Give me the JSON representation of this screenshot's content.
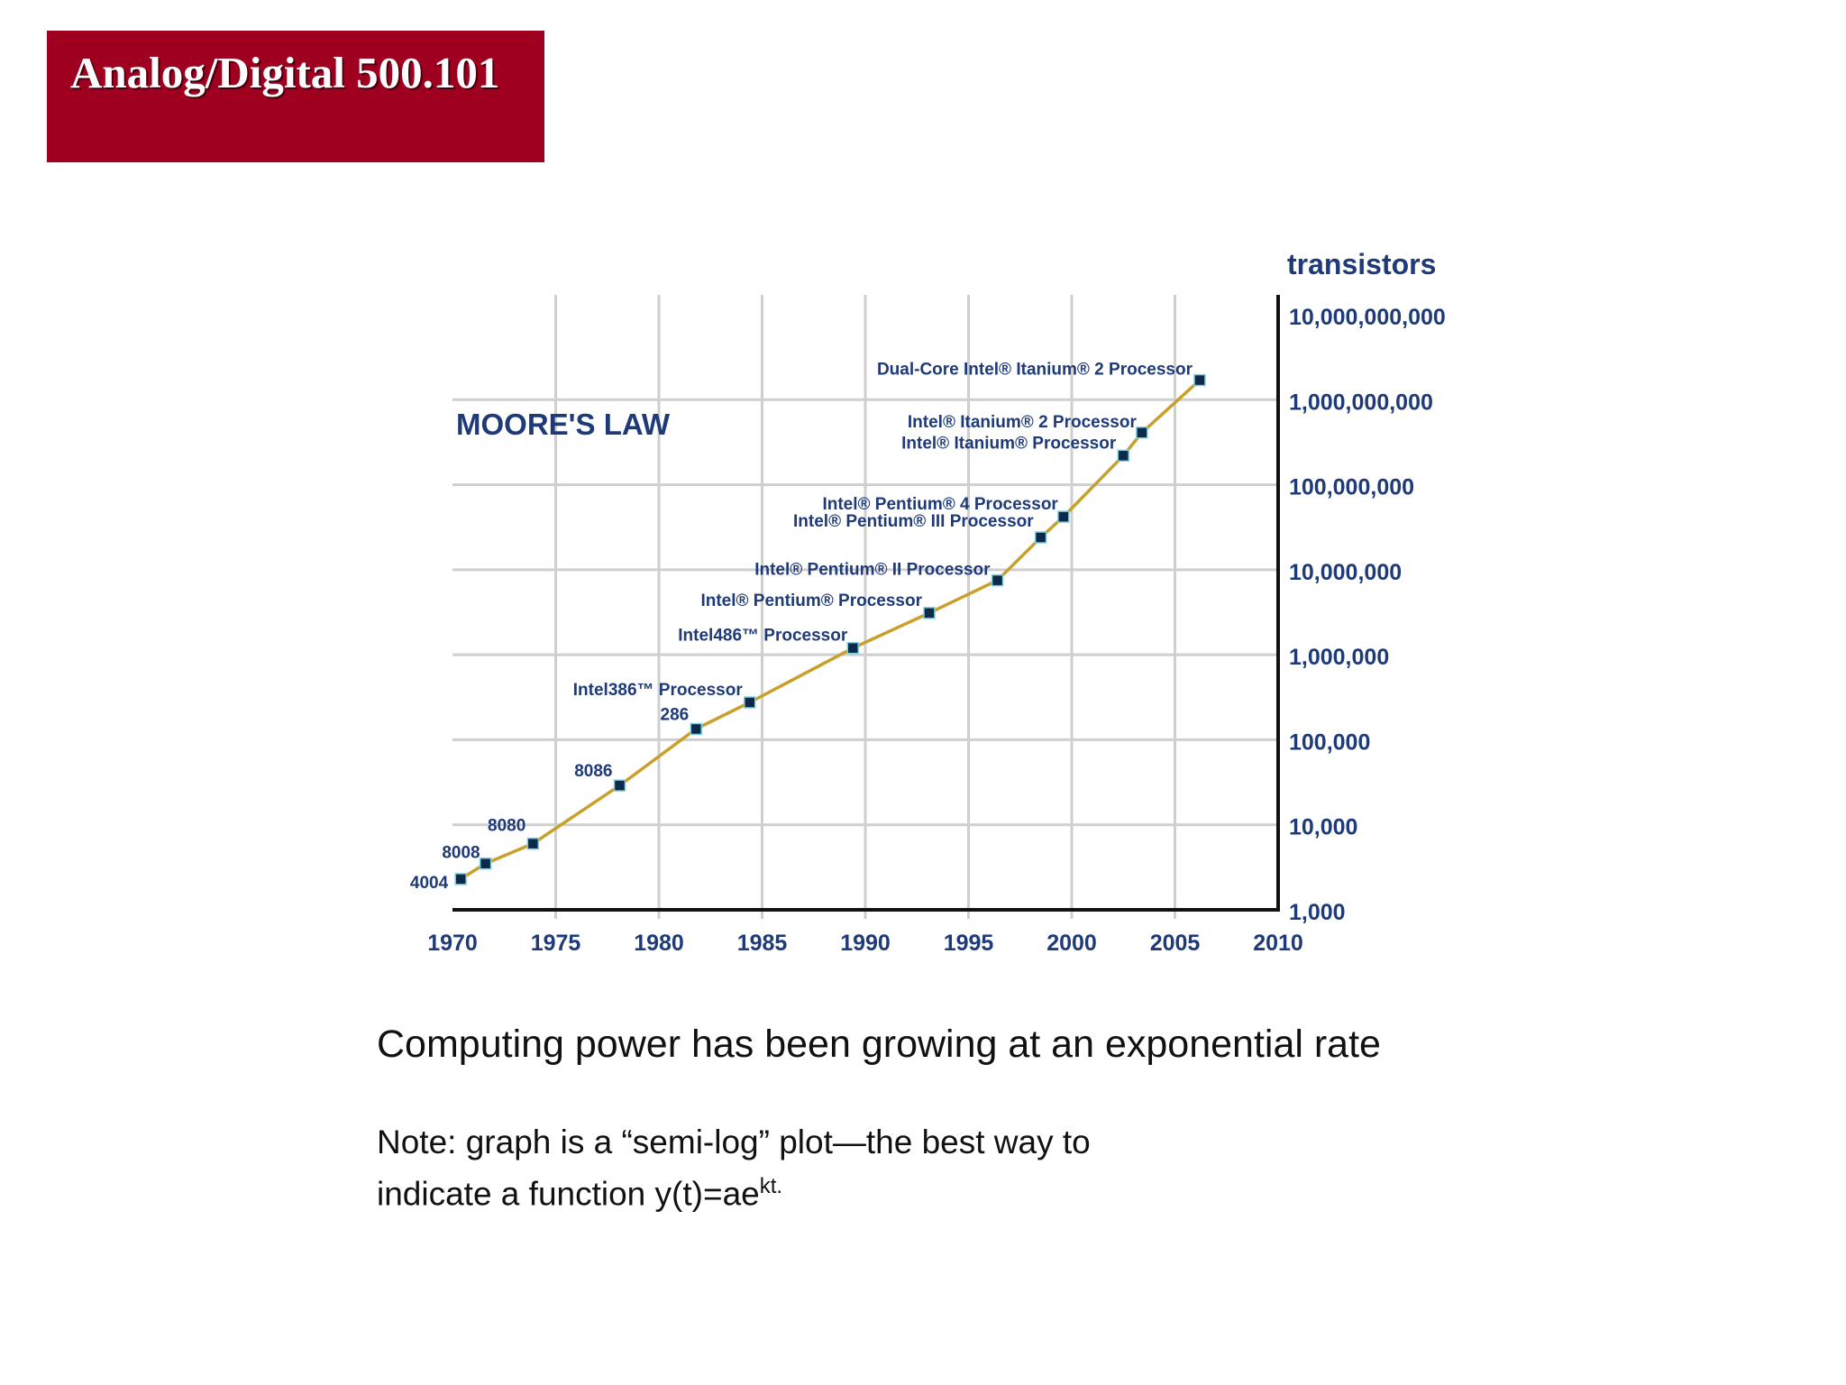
{
  "header": {
    "title": "Analog/Digital 500.101"
  },
  "caption": {
    "main": "Computing power has been growing at an exponential rate",
    "note_line1": "Note:  graph is a “semi-log” plot—the best way to",
    "note_line2_prefix": "indicate a function y(t)=ae",
    "note_line2_sup": "kt."
  },
  "colors": {
    "header_bg": "#a00020",
    "line": "#c8a02a",
    "text_blue": "#1e3a78",
    "grid": "#cfcfcf"
  },
  "chart_data": {
    "type": "line",
    "title": "MOORE'S LAW",
    "ylabel": "transistors",
    "yscale": "log",
    "grid": true,
    "xlim": [
      1970,
      2010
    ],
    "ylim": [
      1000,
      10000000000
    ],
    "x_ticks": [
      "1970",
      "1975",
      "1980",
      "1985",
      "1990",
      "1995",
      "2000",
      "2005",
      "2010"
    ],
    "y_ticks": [
      "10,000,000,000",
      "1,000,000,000",
      "100,000,000",
      "10,000,000",
      "1,000,000",
      "100,000",
      "10,000",
      "1,000"
    ],
    "y_tick_values": [
      10000000000,
      1000000000,
      100000000,
      10000000,
      1000000,
      100000,
      10000,
      1000
    ],
    "points": [
      {
        "label": "4004",
        "x": 1970.4,
        "y": 2300
      },
      {
        "label": "8008",
        "x": 1971.6,
        "y": 3500
      },
      {
        "label": "8080",
        "x": 1973.9,
        "y": 6000
      },
      {
        "label": "8086",
        "x": 1978.1,
        "y": 29000
      },
      {
        "label": "286",
        "x": 1981.8,
        "y": 134000
      },
      {
        "label": "Intel386™ Processor",
        "x": 1984.4,
        "y": 275000
      },
      {
        "label": "Intel486™ Processor",
        "x": 1989.4,
        "y": 1200000
      },
      {
        "label": "Intel® Pentium® Processor",
        "x": 1993.1,
        "y": 3100000
      },
      {
        "label": "Intel® Pentium® II Processor",
        "x": 1996.4,
        "y": 7500000
      },
      {
        "label": "Intel® Pentium® III Processor",
        "x": 1998.5,
        "y": 24000000
      },
      {
        "label": "Intel® Pentium® 4 Processor",
        "x": 1999.6,
        "y": 42000000
      },
      {
        "label": "Intel® Itanium® Processor",
        "x": 2002.5,
        "y": 220000000
      },
      {
        "label": "Intel® Itanium® 2 Processor",
        "x": 2003.4,
        "y": 410000000
      },
      {
        "label": "Dual-Core Intel® Itanium® 2 Processor",
        "x": 2006.2,
        "y": 1700000000
      }
    ]
  }
}
